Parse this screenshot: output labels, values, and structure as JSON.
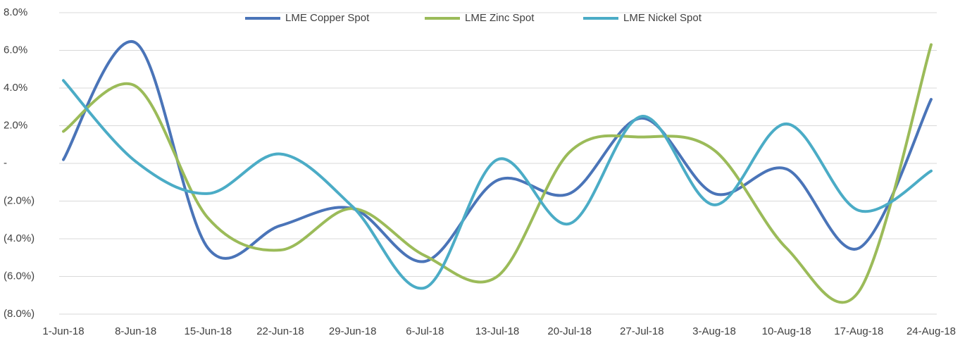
{
  "chart_data": {
    "type": "line",
    "x": [
      "1-Jun-18",
      "8-Jun-18",
      "15-Jun-18",
      "22-Jun-18",
      "29-Jun-18",
      "6-Jul-18",
      "13-Jul-18",
      "20-Jul-18",
      "27-Jul-18",
      "3-Aug-18",
      "10-Aug-18",
      "17-Aug-18",
      "24-Aug-18"
    ],
    "series": [
      {
        "name": "LME Copper Spot",
        "color": "#4a74b8",
        "values": [
          0.2,
          6.4,
          -4.5,
          -3.3,
          -2.4,
          -5.2,
          -0.9,
          -1.6,
          2.4,
          -1.6,
          -0.3,
          -4.5,
          3.4
        ]
      },
      {
        "name": "LME Zinc Spot",
        "color": "#9bbb59",
        "values": [
          1.7,
          4.1,
          -2.9,
          -4.6,
          -2.4,
          -4.9,
          -6.0,
          0.6,
          1.4,
          0.7,
          -4.5,
          -6.8,
          6.3
        ]
      },
      {
        "name": "LME Nickel Spot",
        "color": "#4bacc6",
        "values": [
          4.4,
          0.1,
          -1.6,
          0.5,
          -2.3,
          -6.6,
          0.2,
          -3.2,
          2.5,
          -2.2,
          2.1,
          -2.5,
          -0.4
        ]
      }
    ],
    "ylim": [
      -8,
      8
    ],
    "yticks": [
      {
        "value": 8,
        "label": "8.0%"
      },
      {
        "value": 6,
        "label": "6.0%"
      },
      {
        "value": 4,
        "label": "4.0%"
      },
      {
        "value": 2,
        "label": "2.0%"
      },
      {
        "value": 0,
        "label": "-"
      },
      {
        "value": -2,
        "label": "(2.0%)"
      },
      {
        "value": -4,
        "label": "(4.0%)"
      },
      {
        "value": -6,
        "label": "(6.0%)"
      },
      {
        "value": -8,
        "label": "(8.0%)"
      }
    ],
    "grid": true,
    "smooth": true,
    "legend": "top"
  }
}
